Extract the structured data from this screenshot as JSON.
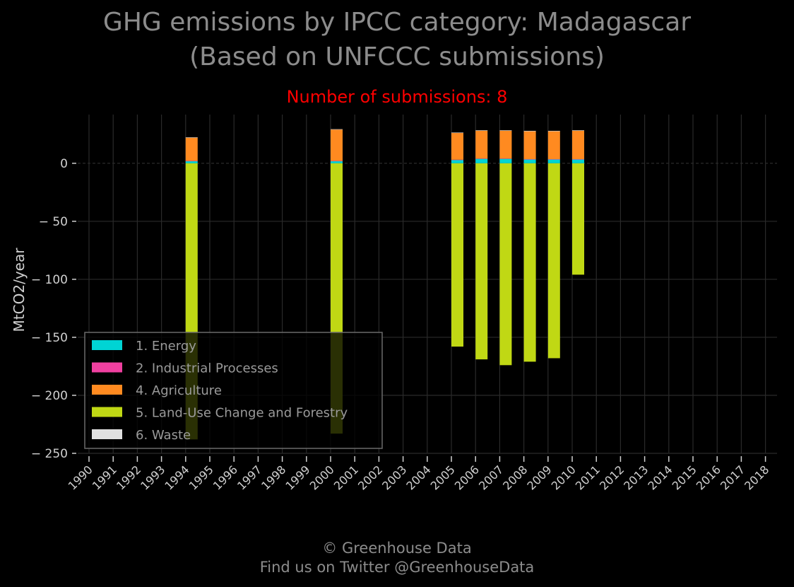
{
  "header": {
    "title_line1": "GHG emissions by IPCC category: Madagascar",
    "title_line2": "(Based on UNFCCC submissions)",
    "subtitle": "Number of submissions: 8"
  },
  "footer": {
    "line1": "© Greenhouse Data",
    "line2": "Find us on Twitter @GreenhouseData"
  },
  "colors": {
    "background": "#000000",
    "grid": "#2a2a2a",
    "axis_text": "#d0d0d0",
    "title_text": "#8c8c8c",
    "subtitle_text": "#ff0000",
    "energy": "#00d4d4",
    "industrial": "#f040a0",
    "agriculture": "#ff8a20",
    "lulucf": "#c0d814",
    "waste": "#e0e0e0"
  },
  "chart_data": {
    "type": "bar",
    "stacked": true,
    "ylabel": "MtCO2/year",
    "xlabel": "",
    "ylim": [
      -250,
      42
    ],
    "yticks": [
      0,
      -50,
      -100,
      -150,
      -200,
      -250
    ],
    "ytick_labels": [
      "0",
      "− 50",
      "− 100",
      "− 150",
      "− 200",
      "− 250"
    ],
    "categories": [
      "1990",
      "1991",
      "1992",
      "1993",
      "1994",
      "1995",
      "1996",
      "1997",
      "1998",
      "1999",
      "2000",
      "2001",
      "2002",
      "2003",
      "2004",
      "2005",
      "2006",
      "2007",
      "2008",
      "2009",
      "2010",
      "2011",
      "2012",
      "2013",
      "2014",
      "2015",
      "2016",
      "2017",
      "2018"
    ],
    "grid": true,
    "legend_position": "lower-left",
    "series": [
      {
        "name": "1. Energy",
        "color_key": "energy",
        "values": [
          null,
          null,
          null,
          null,
          2,
          null,
          null,
          null,
          null,
          null,
          2,
          null,
          null,
          null,
          null,
          3,
          4,
          4,
          3.5,
          3.5,
          3.5,
          null,
          null,
          null,
          null,
          null,
          null,
          null,
          null
        ]
      },
      {
        "name": "2. Industrial Processes",
        "color_key": "industrial",
        "values": [
          null,
          null,
          null,
          null,
          0.1,
          null,
          null,
          null,
          null,
          null,
          0.1,
          null,
          null,
          null,
          null,
          0.1,
          0.1,
          0.1,
          0.1,
          0.1,
          0.1,
          null,
          null,
          null,
          null,
          null,
          null,
          null,
          null
        ]
      },
      {
        "name": "4. Agriculture",
        "color_key": "agriculture",
        "values": [
          null,
          null,
          null,
          null,
          20,
          null,
          null,
          null,
          null,
          null,
          27,
          null,
          null,
          null,
          null,
          23,
          24,
          24,
          24,
          24,
          24.5,
          null,
          null,
          null,
          null,
          null,
          null,
          null,
          null
        ]
      },
      {
        "name": "5. Land-Use Change and Forestry",
        "color_key": "lulucf",
        "values": [
          null,
          null,
          null,
          null,
          -238,
          null,
          null,
          null,
          null,
          null,
          -233,
          null,
          null,
          null,
          null,
          -158,
          -169,
          -174,
          -171,
          -168,
          -96,
          null,
          null,
          null,
          null,
          null,
          null,
          null,
          null
        ]
      },
      {
        "name": "6. Waste",
        "color_key": "waste",
        "values": [
          null,
          null,
          null,
          null,
          0.3,
          null,
          null,
          null,
          null,
          null,
          0.3,
          null,
          null,
          null,
          null,
          0.4,
          0.4,
          0.4,
          0.4,
          0.4,
          0.4,
          null,
          null,
          null,
          null,
          null,
          null,
          null,
          null
        ]
      }
    ]
  }
}
